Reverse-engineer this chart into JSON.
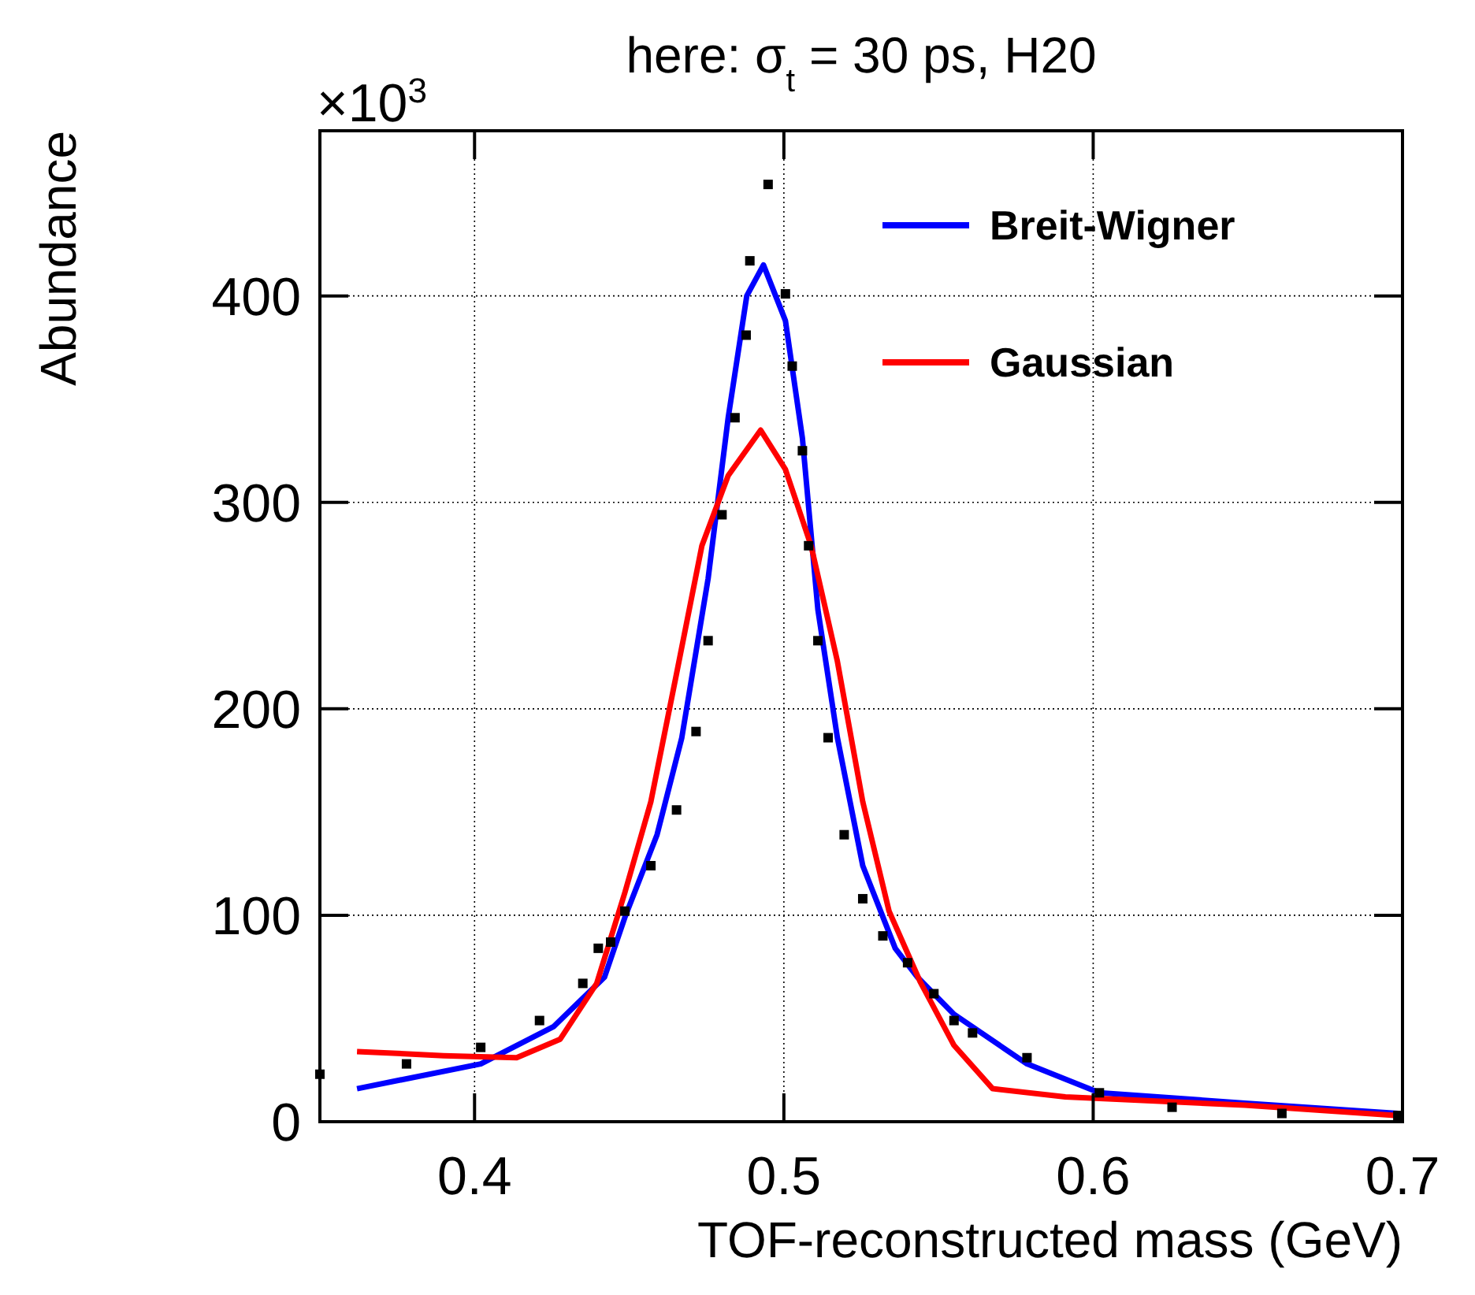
{
  "chart_data": {
    "type": "scatter",
    "title": "here: σ$_{t}$ = 30 ps, H20",
    "xlabel": "TOF-reconstructed mass (GeV)",
    "ylabel": "Abundance",
    "annotations": [
      "×10$^{3}$"
    ],
    "xlim": [
      0.35,
      0.7
    ],
    "xticks": [
      0.4,
      0.5,
      0.6,
      0.7
    ],
    "ylim": [
      0,
      480
    ],
    "yticks": [
      0,
      100,
      200,
      300,
      400
    ],
    "grid": true,
    "legend": "top right",
    "series": [
      {
        "marker": "square",
        "color": "#000000",
        "x": [
          0.35,
          0.378,
          0.402,
          0.421,
          0.435,
          0.44,
          0.444,
          0.4486,
          0.457,
          0.4653,
          0.4716,
          0.4755,
          0.48,
          0.4842,
          0.4878,
          0.489,
          0.4949,
          0.5005,
          0.5027,
          0.506,
          0.508,
          0.511,
          0.5143,
          0.5195,
          0.5255,
          0.532,
          0.54,
          0.5485,
          0.555,
          0.561,
          0.5786,
          0.602,
          0.6255,
          0.661,
          0.6985
        ],
        "values": [
          23,
          28,
          36,
          49,
          67,
          84,
          87,
          102,
          124,
          151,
          189,
          233,
          294,
          341,
          381,
          417,
          454,
          401,
          366,
          325,
          279,
          233,
          186,
          139,
          108,
          90,
          77,
          62,
          49,
          43,
          31,
          14,
          7,
          4,
          3
        ]
      },
      {
        "type": "line",
        "name": "Breit-Wigner",
        "color": "#0000ff",
        "x": [
          0.362,
          0.402,
          0.4255,
          0.442,
          0.4486,
          0.459,
          0.467,
          0.4755,
          0.482,
          0.488,
          0.4934,
          0.5005,
          0.506,
          0.511,
          0.5173,
          0.5255,
          0.536,
          0.5432,
          0.555,
          0.5786,
          0.602,
          0.649,
          0.6985
        ],
        "values": [
          16,
          28,
          46,
          70,
          99,
          139,
          186,
          263,
          341,
          400,
          415,
          388,
          331,
          248,
          186,
          124,
          84,
          70,
          52,
          28,
          14,
          9,
          4
        ]
      },
      {
        "type": "line",
        "name": "Gaussian",
        "color": "#ff0000",
        "x": [
          0.362,
          0.39,
          0.4136,
          0.4277,
          0.4395,
          0.4486,
          0.457,
          0.4653,
          0.4735,
          0.482,
          0.4925,
          0.5005,
          0.5088,
          0.5173,
          0.5255,
          0.534,
          0.544,
          0.555,
          0.5675,
          0.591,
          0.649,
          0.6985
        ],
        "values": [
          34,
          32,
          31,
          40,
          67,
          111,
          155,
          217,
          279,
          313,
          335,
          316,
          279,
          223,
          155,
          102,
          68,
          37,
          16,
          12,
          8,
          3
        ]
      }
    ]
  }
}
